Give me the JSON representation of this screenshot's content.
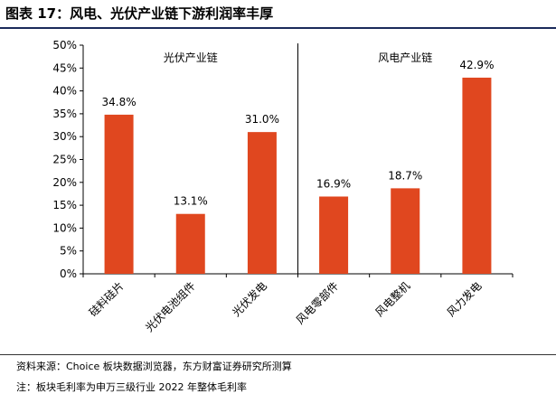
{
  "header": {
    "title": "图表 17：风电、光伏产业链下游利润率丰厚"
  },
  "footer": {
    "source": "资料来源：Choice 板块数据浏览器，东方财富证券研究所测算",
    "note": "注：板块毛利率为申万三级行业 2022 年整体毛利率"
  },
  "chart_data": {
    "type": "bar",
    "title": "",
    "xlabel": "",
    "ylabel": "",
    "categories": [
      "硅料硅片",
      "光伏电池组件",
      "光伏发电",
      "风电零部件",
      "风电整机",
      "风力发电"
    ],
    "values": [
      34.8,
      13.1,
      31.0,
      16.9,
      18.7,
      42.9
    ],
    "data_labels": [
      "34.8%",
      "13.1%",
      "31.0%",
      "16.9%",
      "18.7%",
      "42.9%"
    ],
    "ylim": [
      0,
      50
    ],
    "y_ticks": [
      "0%",
      "5%",
      "10%",
      "15%",
      "20%",
      "25%",
      "30%",
      "35%",
      "40%",
      "45%",
      "50%"
    ],
    "y_tick_values": [
      0,
      5,
      10,
      15,
      20,
      25,
      30,
      35,
      40,
      45,
      50
    ],
    "groups": [
      {
        "label": "光伏产业链",
        "count": 3
      },
      {
        "label": "风电产业链",
        "count": 3
      }
    ],
    "grid": false,
    "bar_color": "#e0471f"
  }
}
